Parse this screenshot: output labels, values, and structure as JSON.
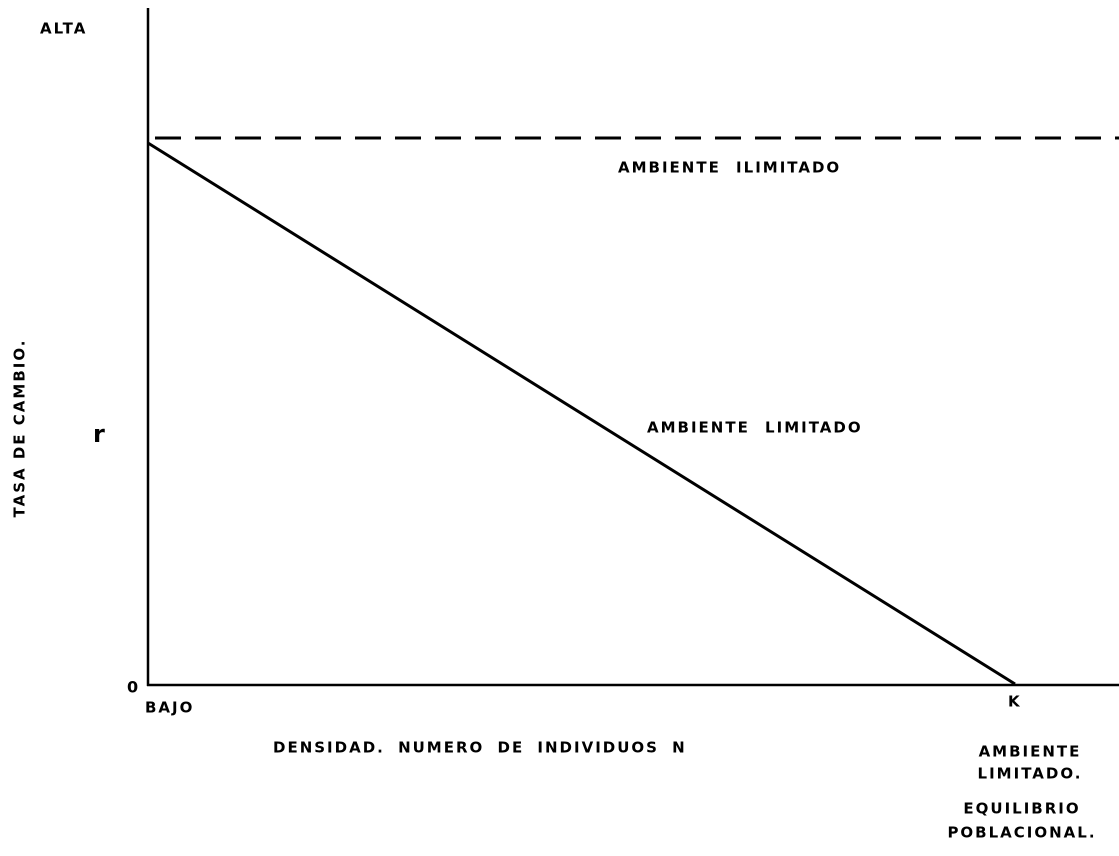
{
  "axes": {
    "y_top": "ALTA",
    "y_label": "TASA DE CAMBIO.",
    "y_mid": "r",
    "origin": "0",
    "x_start": "BAJO",
    "x_label": "DENSIDAD. NUMERO DE INDIVIDUOS N",
    "x_end": "K"
  },
  "curves": {
    "unlimited": "AMBIENTE ILIMITADO",
    "limited": "AMBIENTE LIMITADO"
  },
  "k_notes": [
    [
      "AMBIENTE",
      "LIMITADO."
    ],
    [
      "EQUILIBRIO",
      "POBLACIONAL."
    ]
  ]
}
